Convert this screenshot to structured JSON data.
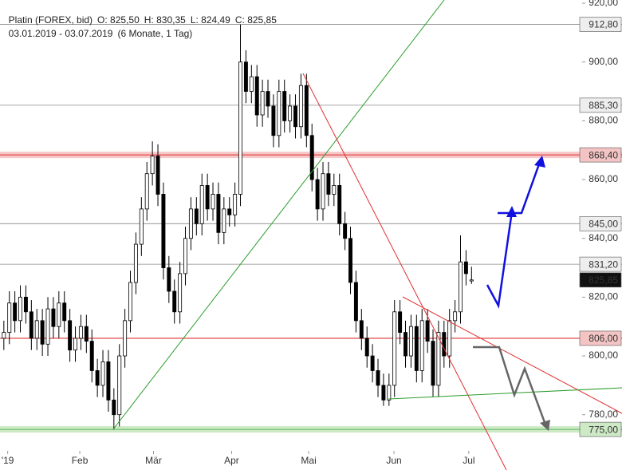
{
  "header": {
    "instrument": "Platin (FOREX, bid)",
    "open": "O: 825,50",
    "high": "H: 830,35",
    "low": "L: 824,49",
    "close": "C: 825,85",
    "range": "03.01.2019 - 03.07.2019",
    "period": "(6 Monate, 1 Tag)"
  },
  "chart_data": {
    "type": "candlestick",
    "xlim": [
      -0.7,
      105.1
    ],
    "ylim": [
      767.7,
      921.1
    ],
    "xticks": [
      {
        "value": 0.7,
        "label": "'19"
      },
      {
        "value": 13.8,
        "label": "Feb"
      },
      {
        "value": 27.2,
        "label": "Mär"
      },
      {
        "value": 41.4,
        "label": "Apr"
      },
      {
        "value": 55.4,
        "label": "Mai"
      },
      {
        "value": 70.9,
        "label": "Jun"
      },
      {
        "value": 84.5,
        "label": "Jul"
      }
    ],
    "yticks": [
      {
        "value": 920,
        "label": "920,00"
      },
      {
        "value": 900,
        "label": "900,00"
      },
      {
        "value": 880,
        "label": "880,00"
      },
      {
        "value": 860,
        "label": "860,00"
      },
      {
        "value": 840,
        "label": "840,00"
      },
      {
        "value": 820,
        "label": "820,00"
      },
      {
        "value": 800,
        "label": "800,00"
      },
      {
        "value": 780,
        "label": "780,00"
      }
    ],
    "levels": [
      {
        "value": 912.8,
        "label": "912,80",
        "style": "line"
      },
      {
        "value": 885.3,
        "label": "885,30",
        "style": "line"
      },
      {
        "value": 868.4,
        "label": "868,40",
        "style": "red-band"
      },
      {
        "value": 845,
        "label": "845,00",
        "style": "line"
      },
      {
        "value": 831.2,
        "label": "831,20",
        "style": "line"
      },
      {
        "value": 825.85,
        "label": "825,85",
        "style": "last"
      },
      {
        "value": 806,
        "label": "806,00",
        "style": "red-line"
      },
      {
        "value": 775,
        "label": "775,00",
        "style": "green-band"
      }
    ],
    "up_color": "#ffffff",
    "down_color": "#000000",
    "open": [
      806,
      808,
      818,
      812,
      820,
      815,
      806,
      812,
      804,
      816,
      810,
      818,
      812,
      802,
      806,
      810,
      805,
      795,
      790,
      798,
      785,
      780,
      800,
      812,
      825,
      838,
      850,
      862,
      868,
      855,
      830,
      822,
      815,
      828,
      840,
      850,
      845,
      858,
      850,
      855,
      842,
      850,
      848,
      855,
      900,
      890,
      895,
      882,
      890,
      885,
      875,
      890,
      880,
      885,
      878,
      892,
      875,
      860,
      850,
      862,
      855,
      858,
      845,
      840,
      825,
      812,
      806,
      800,
      795,
      790,
      785,
      790,
      815,
      808,
      800,
      810,
      795,
      812,
      805,
      790,
      808,
      800,
      812,
      815,
      832,
      825.5
    ],
    "high": [
      812,
      822,
      822,
      824,
      824,
      819,
      816,
      816,
      820,
      820,
      822,
      822,
      816,
      810,
      814,
      814,
      809,
      799,
      802,
      802,
      789,
      804,
      816,
      829,
      842,
      854,
      866,
      873,
      872,
      859,
      834,
      826,
      832,
      844,
      854,
      854,
      862,
      862,
      859,
      859,
      854,
      854,
      859,
      912.8,
      904,
      899,
      899,
      894,
      894,
      889,
      894,
      894,
      889,
      889,
      896,
      896,
      879,
      864,
      866,
      866,
      862,
      862,
      849,
      844,
      829,
      816,
      810,
      804,
      799,
      794,
      794,
      819,
      819,
      812,
      814,
      814,
      816,
      816,
      809,
      812,
      812,
      816,
      819,
      841,
      836,
      830.35
    ],
    "low": [
      802,
      804,
      808,
      808,
      811,
      802,
      802,
      800,
      800,
      806,
      806,
      808,
      798,
      798,
      802,
      801,
      791,
      786,
      786,
      781,
      775,
      776,
      796,
      808,
      821,
      834,
      846,
      858,
      851,
      826,
      818,
      811,
      811,
      824,
      836,
      841,
      841,
      846,
      846,
      838,
      838,
      844,
      844,
      851,
      886,
      886,
      878,
      878,
      881,
      871,
      871,
      876,
      876,
      874,
      874,
      871,
      856,
      846,
      846,
      851,
      851,
      841,
      836,
      821,
      808,
      802,
      796,
      791,
      786,
      783,
      783,
      786,
      804,
      796,
      796,
      791,
      791,
      801,
      786,
      786,
      796,
      796,
      808,
      811,
      824,
      824.49
    ],
    "close": [
      808,
      818,
      812,
      820,
      815,
      806,
      812,
      804,
      816,
      810,
      818,
      812,
      802,
      806,
      810,
      805,
      795,
      790,
      798,
      785,
      780,
      800,
      812,
      825,
      838,
      850,
      862,
      868,
      855,
      830,
      822,
      815,
      828,
      840,
      850,
      845,
      858,
      850,
      855,
      842,
      850,
      848,
      855,
      900,
      890,
      895,
      882,
      890,
      885,
      875,
      890,
      880,
      885,
      878,
      892,
      875,
      860,
      850,
      862,
      855,
      858,
      845,
      840,
      825,
      812,
      806,
      800,
      795,
      790,
      785,
      790,
      815,
      808,
      800,
      810,
      795,
      812,
      805,
      790,
      808,
      800,
      812,
      815,
      832,
      828,
      825.85
    ]
  }
}
